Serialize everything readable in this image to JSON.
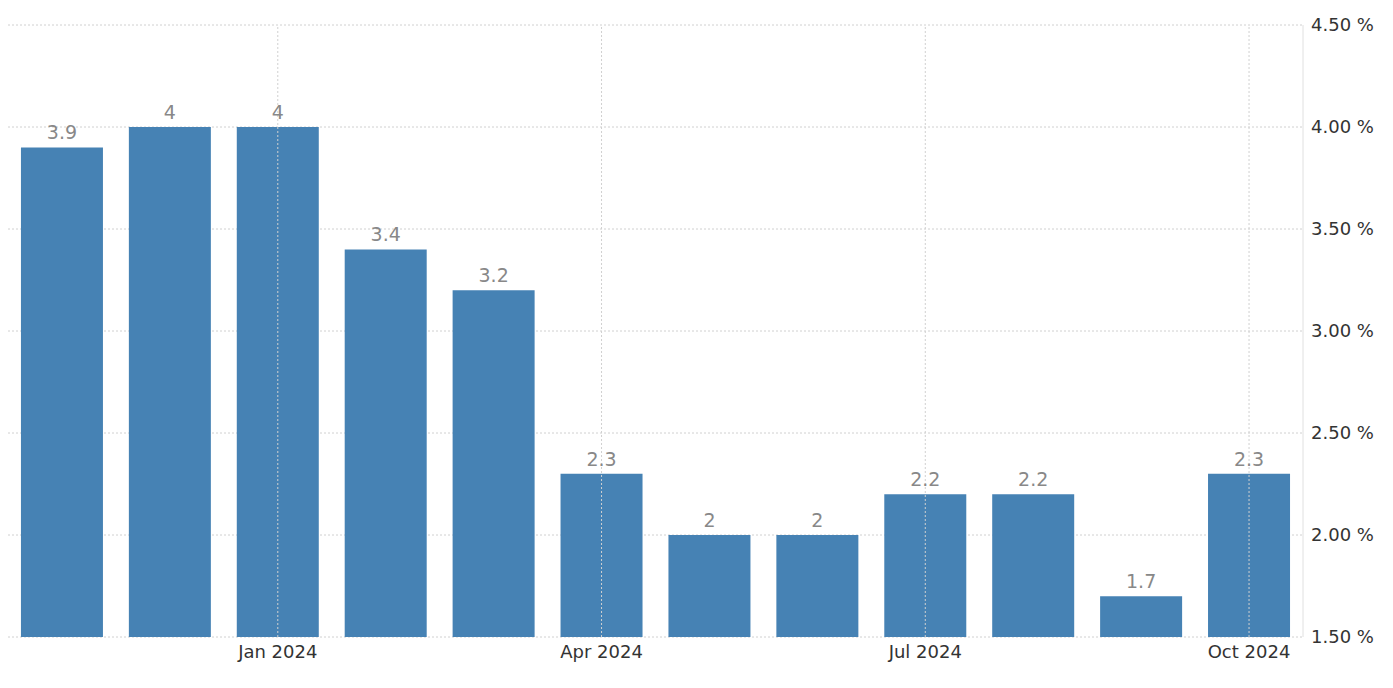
{
  "chart_data": {
    "type": "bar",
    "categories": [
      null,
      null,
      "Jan 2024",
      null,
      null,
      "Apr 2024",
      null,
      null,
      "Jul 2024",
      null,
      null,
      "Oct 2024"
    ],
    "values": [
      3.9,
      4,
      4,
      3.4,
      3.2,
      2.3,
      2,
      2,
      2.2,
      2.2,
      1.7,
      2.3
    ],
    "color": "#4682b4",
    "ylim": [
      1.5,
      4.5
    ],
    "yticks": [
      {
        "value": 1.5,
        "label": "1.50 %"
      },
      {
        "value": 2,
        "label": "2.00 %"
      },
      {
        "value": 2.5,
        "label": "2.50 %"
      },
      {
        "value": 3,
        "label": "3.00 %"
      },
      {
        "value": 3.5,
        "label": "3.50 %"
      },
      {
        "value": 4,
        "label": "4.00 %"
      },
      {
        "value": 4.5,
        "label": "4.50 %"
      }
    ],
    "grid": true,
    "data_labels": true
  }
}
